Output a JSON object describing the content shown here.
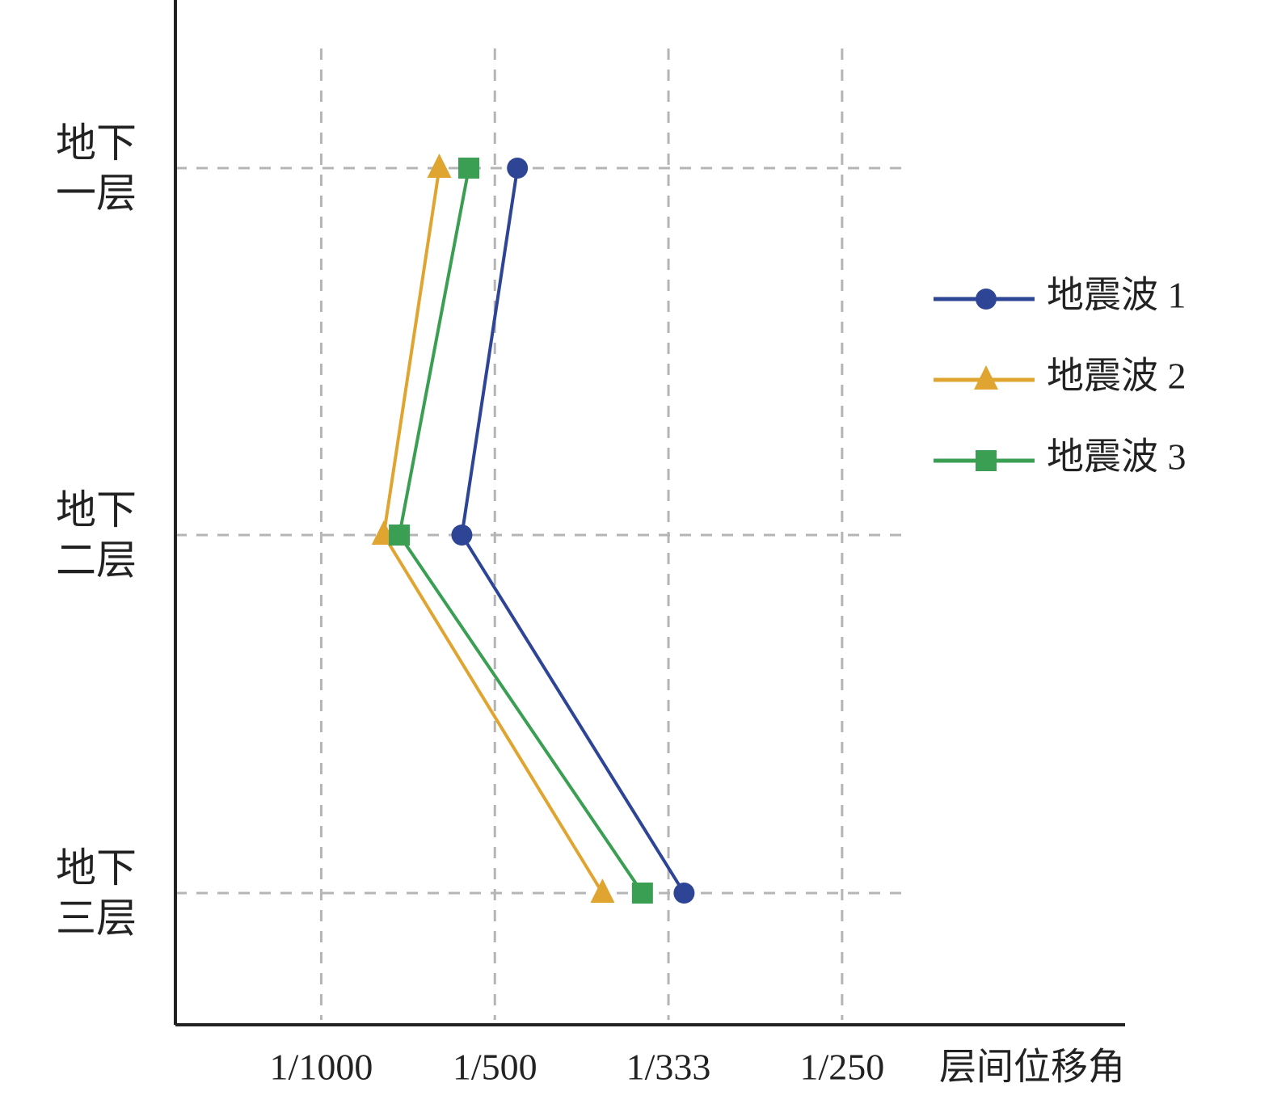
{
  "chart_data": {
    "type": "line",
    "orientation": "horizontal",
    "categories": [
      "地下一层",
      "地下二层",
      "地下三层"
    ],
    "x_label": "层间位移角",
    "xlim": [
      0.00016,
      0.00563
    ],
    "xticks": [
      {
        "value": 0.001,
        "label": "1/1000"
      },
      {
        "value": 0.002,
        "label": "1/500"
      },
      {
        "value": 0.003,
        "label": "1/333"
      },
      {
        "value": 0.004,
        "label": "1/250"
      }
    ],
    "grid": true,
    "legend": "right",
    "series": [
      {
        "name": "地震波 1",
        "color": "#2e4596",
        "marker": "circle",
        "values": [
          0.00213,
          0.00181,
          0.00309
        ]
      },
      {
        "name": "地震波 2",
        "color": "#e0a431",
        "marker": "triangle",
        "values": [
          0.00168,
          0.00136,
          0.00262
        ]
      },
      {
        "name": "地震波 3",
        "color": "#3a9e53",
        "marker": "square",
        "values": [
          0.00185,
          0.00145,
          0.00285
        ]
      }
    ]
  }
}
